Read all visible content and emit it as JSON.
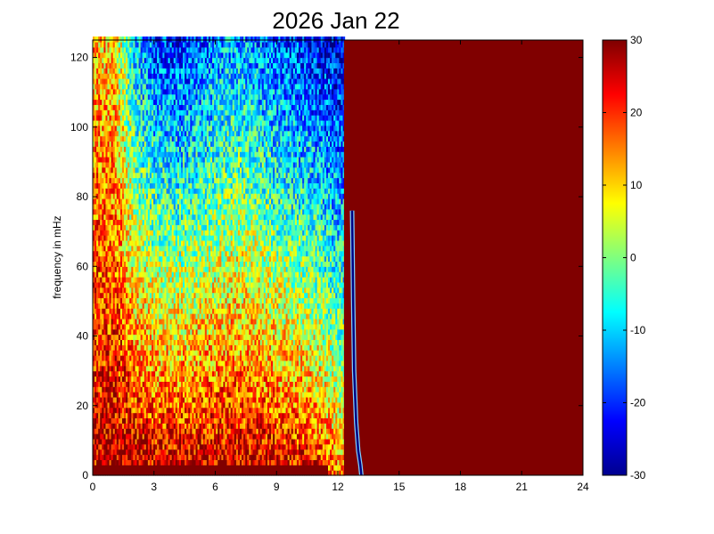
{
  "chart_data": {
    "type": "heatmap",
    "title": "2026 Jan 22",
    "xlabel": "",
    "ylabel": "frequency in mHz",
    "xlim": [
      0,
      24
    ],
    "ylim": [
      0,
      125
    ],
    "x_ticks": [
      "0",
      "3",
      "6",
      "9",
      "12",
      "15",
      "18",
      "21",
      "24"
    ],
    "y_ticks": [
      "0",
      "20",
      "40",
      "60",
      "80",
      "100",
      "120"
    ],
    "colorbar": {
      "colormap": "jet",
      "range": [
        -30,
        30
      ],
      "ticks": [
        "-30",
        "-20",
        "-10",
        "0",
        "10",
        "20",
        "30"
      ]
    },
    "saturated_region": {
      "x_start": 12.3,
      "x_end": 24,
      "value": 30
    },
    "trace": {
      "description_value_dark": -30,
      "points": [
        [
          12.7,
          76
        ],
        [
          12.75,
          50
        ],
        [
          12.8,
          30
        ],
        [
          12.9,
          15
        ],
        [
          13.0,
          7
        ],
        [
          13.1,
          3
        ],
        [
          13.15,
          0
        ]
      ]
    },
    "background_profile": {
      "x": [
        0,
        1,
        2,
        3,
        4,
        5,
        6,
        7,
        8,
        9,
        10,
        11,
        12
      ],
      "low_freq_value": [
        25,
        28,
        28,
        27,
        28,
        28,
        28,
        28,
        27,
        26,
        25,
        22,
        15
      ],
      "high_freq_value": [
        12,
        10,
        -10,
        -18,
        -20,
        -18,
        -15,
        -12,
        -15,
        -18,
        -20,
        -22,
        -24
      ]
    }
  }
}
